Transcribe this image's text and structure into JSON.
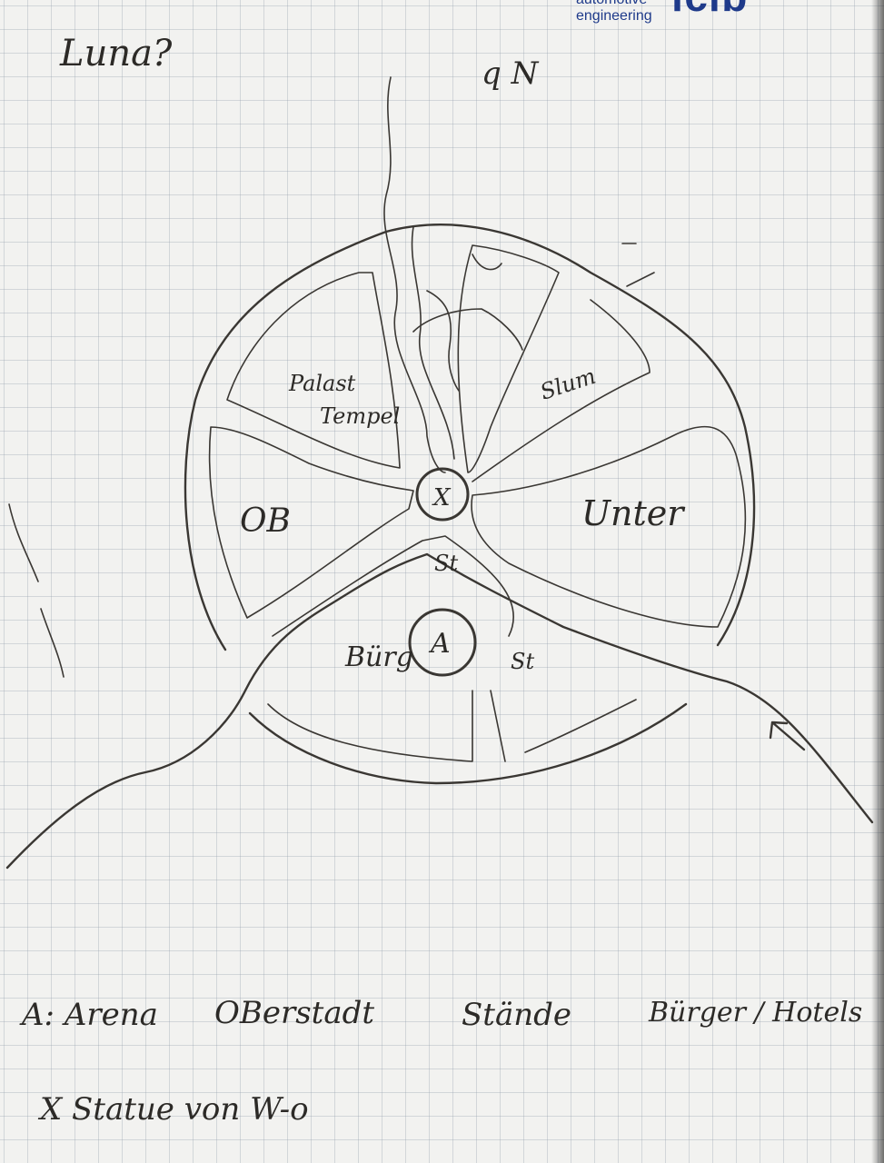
{
  "header": {
    "logo_line1": "automotive",
    "logo_line2": "engineering",
    "logo_mark": "fcfb",
    "title_note": "Luna?",
    "north_note": "q N"
  },
  "map": {
    "regions": {
      "oberstadt": "OB",
      "palast": "Palast",
      "tempel": "Tempel",
      "unter": "Unter",
      "burg": "Bürg",
      "slum": "Slum",
      "staende_1": "St",
      "staende_2": "St"
    },
    "center_marker": "X",
    "arena_marker": "A"
  },
  "legend": {
    "row1": [
      "A: Arena",
      "OBerstadt",
      "Stände",
      "Bürger / Hotels"
    ],
    "row2": "X Statue von W-o"
  },
  "colors": {
    "paper": "#f2f2f0",
    "ink": "#3a3733",
    "logo": "#1e3a8a"
  }
}
